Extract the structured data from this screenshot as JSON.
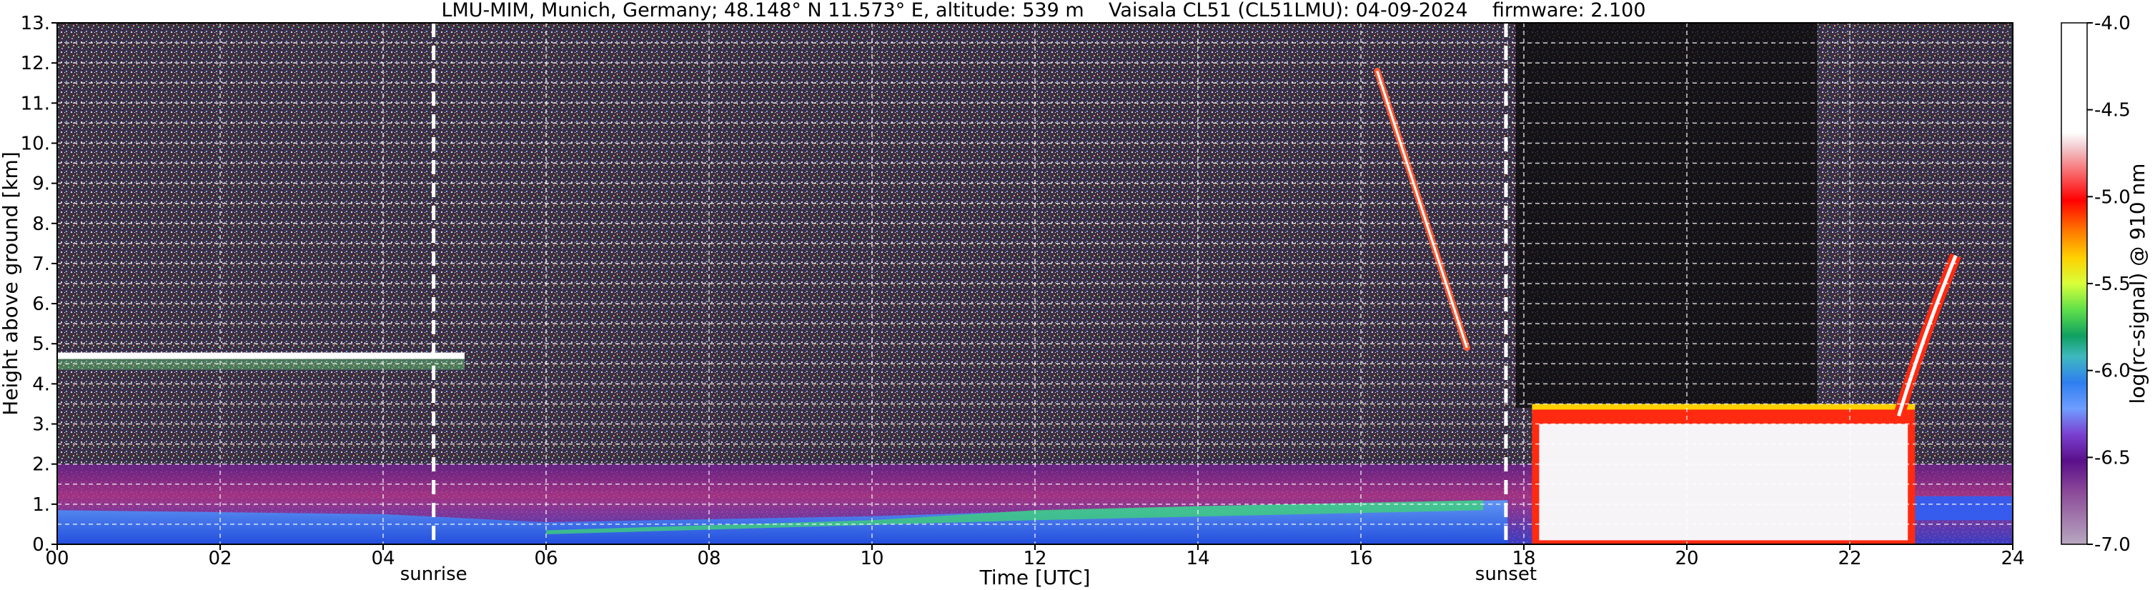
{
  "chart_data": {
    "type": "heatmap",
    "title": "LMU-MIM, Munich, Germany; 48.148° N 11.573° E, altitude: 539 m    Vaisala CL51 (CL51LMU): 04-09-2024    firmware: 2.100",
    "xlabel": "Time [UTC]",
    "ylabel": "Height above ground [km]",
    "xlim": [
      0,
      24
    ],
    "ylim": [
      0,
      13
    ],
    "x_ticks": [
      "00",
      "02",
      "04",
      "06",
      "08",
      "10",
      "12",
      "14",
      "16",
      "18",
      "20",
      "22",
      "24"
    ],
    "y_ticks": [
      "0.",
      "1.",
      "2.",
      "3.",
      "4.",
      "5.",
      "6.",
      "7.",
      "8.",
      "9.",
      "10.",
      "11.",
      "12.",
      "13."
    ],
    "grid": true,
    "colorbar": {
      "label": "log(rc-signal) @ 910 nm",
      "range": [
        -7.0,
        -4.0
      ],
      "ticks": [
        "-4.0",
        "-4.5",
        "-5.0",
        "-5.5",
        "-6.0",
        "-6.5",
        "-7.0"
      ]
    },
    "markers": [
      {
        "label": "sunrise",
        "time": 4.62
      },
      {
        "label": "sunset",
        "time": 17.78
      }
    ],
    "features": [
      {
        "name": "cloud layer",
        "t_start": 0.0,
        "t_end": 5.0,
        "height_km": 4.7
      },
      {
        "name": "cirrus streak",
        "t_start": 16.2,
        "t_end": 17.3,
        "height_top_km": 11.8,
        "height_bottom_km": 4.9
      },
      {
        "name": "low cloud deck",
        "t_start": 18.1,
        "t_end": 22.8,
        "height_km": 3.0
      },
      {
        "name": "rising cloud",
        "t_start": 22.6,
        "t_end": 23.3,
        "height_km": 7.2
      }
    ]
  }
}
